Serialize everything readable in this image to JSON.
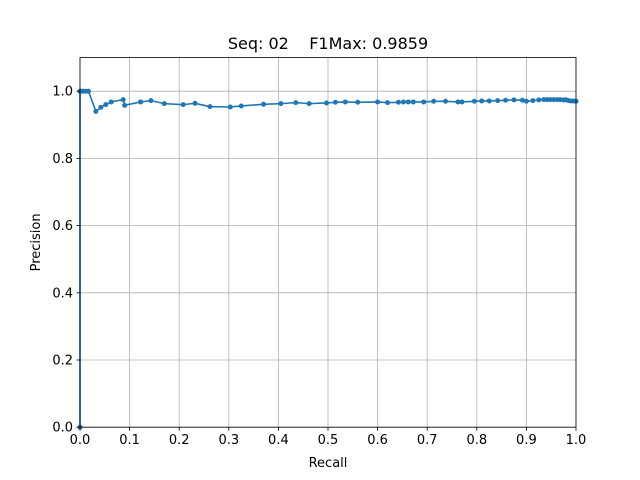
{
  "chart_data": {
    "type": "line",
    "title": "Seq: 02    F1Max: 0.9859",
    "xlabel": "Recall",
    "ylabel": "Precision",
    "xlim": [
      0.0,
      1.0
    ],
    "ylim": [
      0.0,
      1.1
    ],
    "xticks": [
      "0.0",
      "0.1",
      "0.2",
      "0.3",
      "0.4",
      "0.5",
      "0.6",
      "0.7",
      "0.8",
      "0.9",
      "1.0"
    ],
    "yticks": [
      "0.0",
      "0.2",
      "0.4",
      "0.6",
      "0.8",
      "1.0"
    ],
    "grid": true,
    "series": [
      {
        "color": "#1f77b4",
        "marker": "circle",
        "x": [
          0.0,
          0.0,
          0.003,
          0.007,
          0.012,
          0.017,
          0.032,
          0.042,
          0.052,
          0.063,
          0.087,
          0.09,
          0.122,
          0.143,
          0.17,
          0.208,
          0.232,
          0.262,
          0.303,
          0.325,
          0.37,
          0.405,
          0.435,
          0.462,
          0.497,
          0.515,
          0.535,
          0.56,
          0.6,
          0.62,
          0.642,
          0.652,
          0.662,
          0.672,
          0.693,
          0.713,
          0.737,
          0.762,
          0.77,
          0.795,
          0.81,
          0.825,
          0.842,
          0.858,
          0.875,
          0.892,
          0.9,
          0.913,
          0.925,
          0.935,
          0.942,
          0.948,
          0.955,
          0.962,
          0.968,
          0.975,
          0.98,
          0.985,
          0.99,
          0.995,
          1.0
        ],
        "y": [
          0.0,
          1.0,
          1.0,
          1.0,
          1.0,
          1.0,
          0.94,
          0.952,
          0.96,
          0.968,
          0.975,
          0.958,
          0.968,
          0.972,
          0.963,
          0.96,
          0.964,
          0.954,
          0.953,
          0.956,
          0.961,
          0.963,
          0.966,
          0.963,
          0.965,
          0.967,
          0.968,
          0.967,
          0.968,
          0.966,
          0.967,
          0.968,
          0.968,
          0.968,
          0.968,
          0.97,
          0.97,
          0.968,
          0.968,
          0.97,
          0.971,
          0.971,
          0.972,
          0.973,
          0.974,
          0.973,
          0.97,
          0.972,
          0.974,
          0.975,
          0.975,
          0.975,
          0.975,
          0.975,
          0.975,
          0.974,
          0.974,
          0.972,
          0.971,
          0.971,
          0.97
        ]
      }
    ]
  }
}
